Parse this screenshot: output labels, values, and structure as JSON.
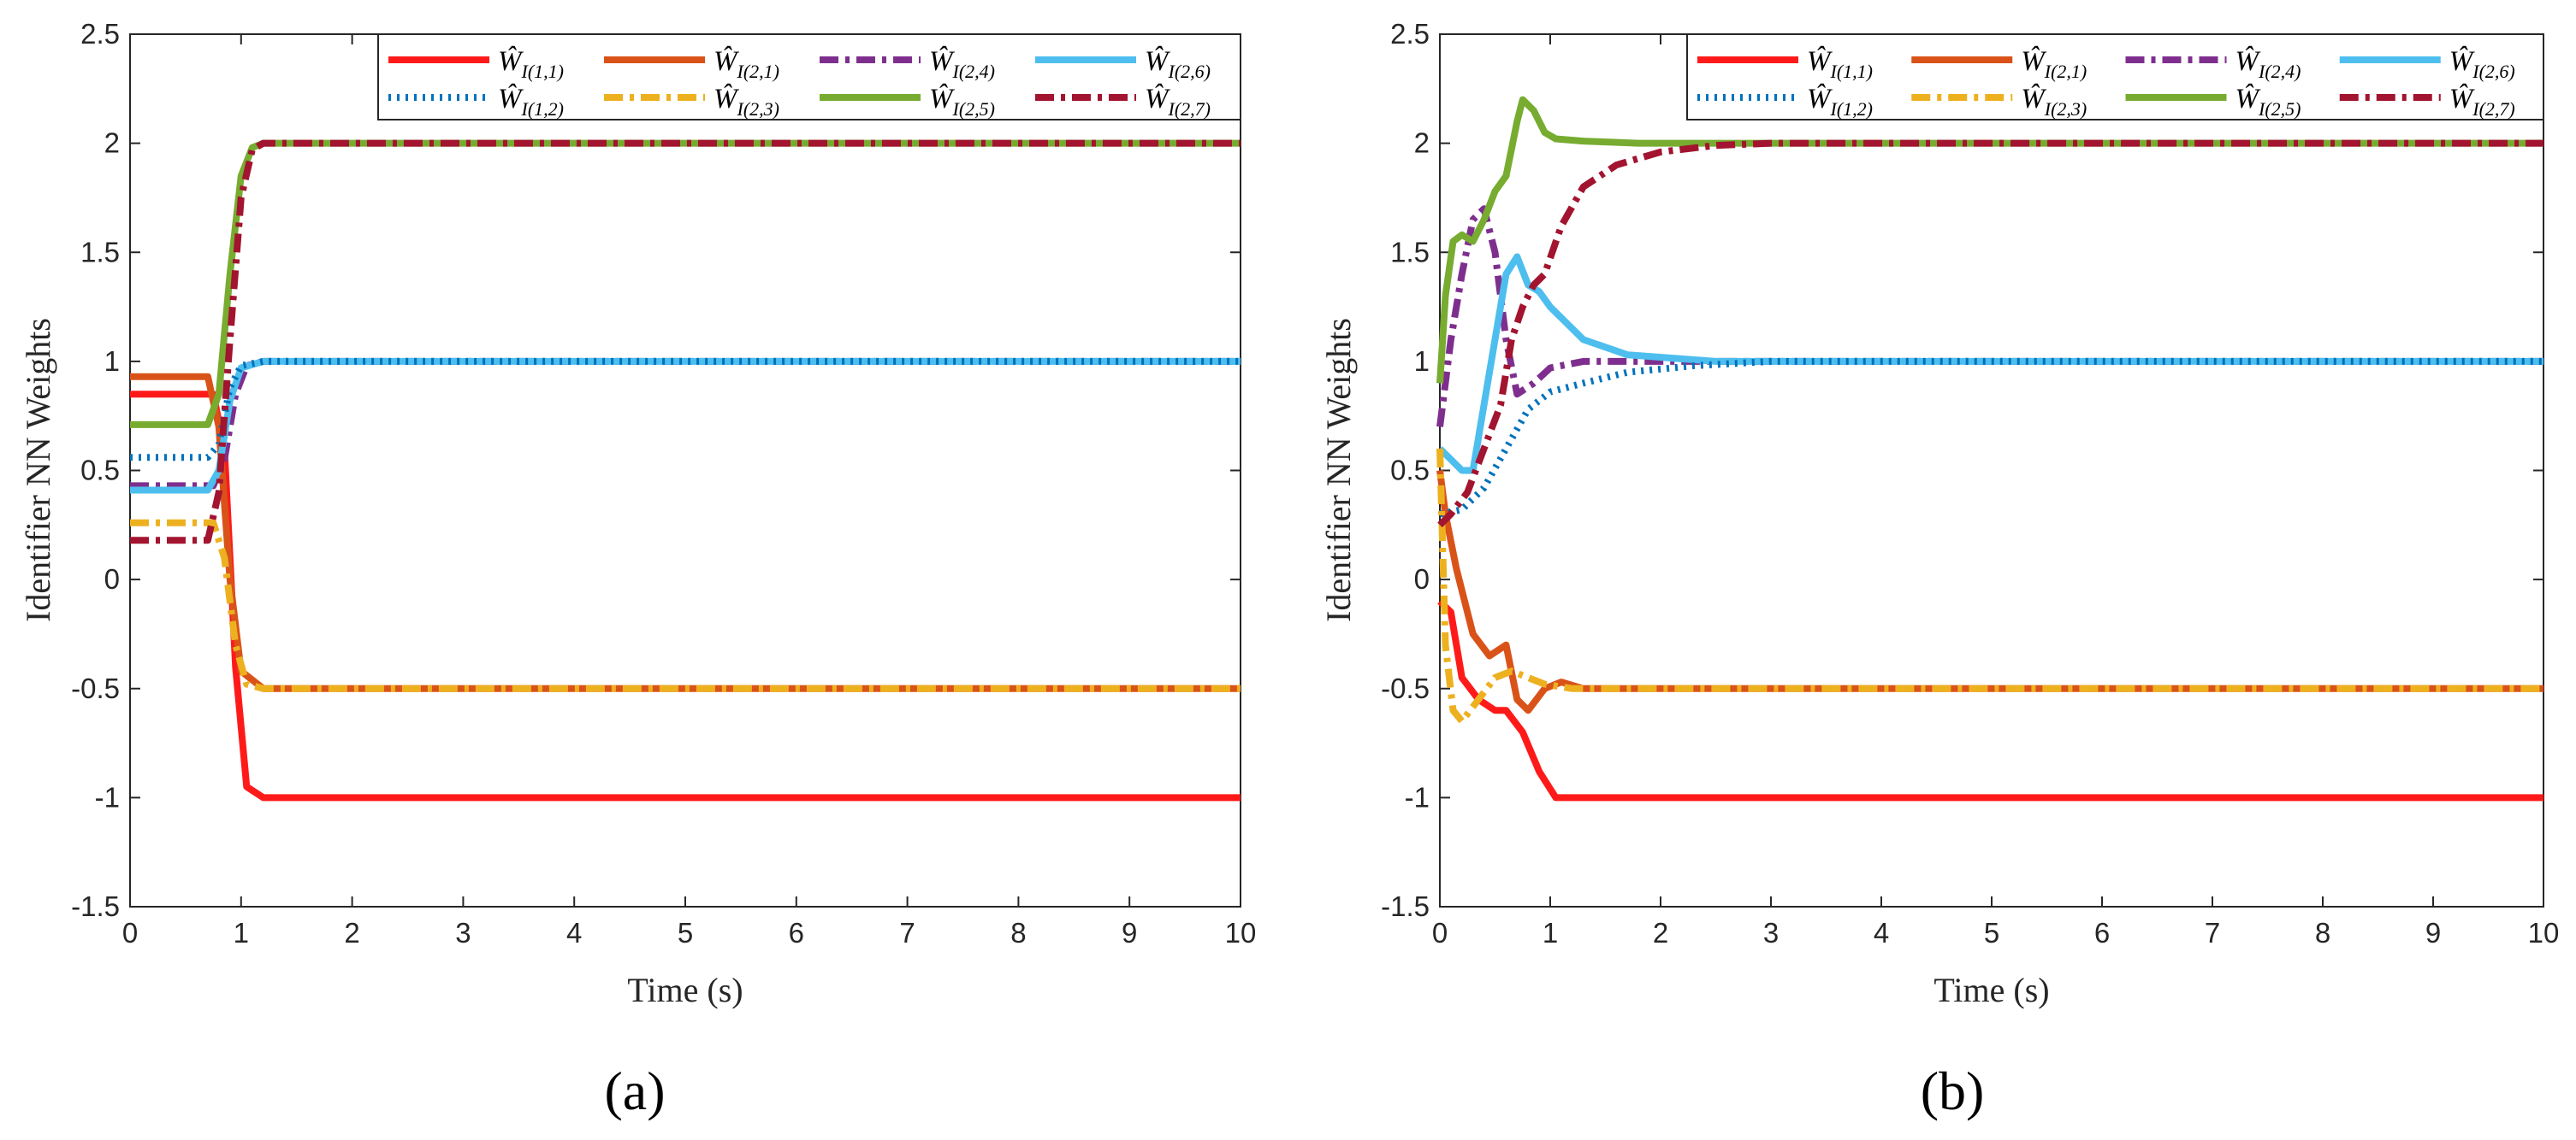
{
  "colors": {
    "w11": "#ff1a1a",
    "w21": "#d95319",
    "w24": "#7e2f8e",
    "w26": "#4dbeee",
    "w12": "#0072bd",
    "w23": "#edb120",
    "w25": "#77ac30",
    "w27": "#a2142f",
    "axis": "#262626"
  },
  "chart_data": [
    {
      "type": "line",
      "caption": "(a)",
      "xlabel": "Time (s)",
      "ylabel": "Identifier NN Weights",
      "xlim": [
        0,
        10
      ],
      "ylim": [
        -1.5,
        2.5
      ],
      "xticks": [
        "0",
        "1",
        "2",
        "3",
        "4",
        "5",
        "6",
        "7",
        "8",
        "9",
        "10"
      ],
      "yticks": [
        "-1.5",
        "-1",
        "-0.5",
        "0",
        "0.5",
        "1",
        "1.5",
        "2",
        "2.5"
      ],
      "legend_position": "top-right",
      "series": [
        {
          "key": "w11",
          "name": "Ŵ",
          "sub": "I(1,1)",
          "style": "solid",
          "x": [
            0,
            0.75,
            0.85,
            0.95,
            1.05,
            1.2,
            10
          ],
          "y": [
            0.85,
            0.85,
            0.6,
            -0.4,
            -0.95,
            -1.0,
            -1.0
          ]
        },
        {
          "key": "w21",
          "name": "Ŵ",
          "sub": "I(2,1)",
          "style": "solid",
          "x": [
            0,
            0.7,
            0.8,
            0.9,
            1.0,
            1.2,
            10
          ],
          "y": [
            0.93,
            0.93,
            0.7,
            0.0,
            -0.42,
            -0.5,
            -0.5
          ]
        },
        {
          "key": "w24",
          "name": "Ŵ",
          "sub": "I(2,4)",
          "style": "dashdot",
          "x": [
            0,
            0.75,
            0.85,
            0.95,
            1.05,
            1.2,
            10
          ],
          "y": [
            0.43,
            0.43,
            0.55,
            0.85,
            0.98,
            1.0,
            1.0
          ]
        },
        {
          "key": "w26",
          "name": "Ŵ",
          "sub": "I(2,6)",
          "style": "solid",
          "x": [
            0,
            0.7,
            0.8,
            0.9,
            1.0,
            1.2,
            10
          ],
          "y": [
            0.41,
            0.41,
            0.5,
            0.82,
            0.97,
            1.0,
            1.0
          ]
        },
        {
          "key": "w12",
          "name": "Ŵ",
          "sub": "I(1,2)",
          "style": "dotted",
          "x": [
            0,
            0.7,
            0.8,
            0.9,
            1.0,
            1.2,
            10
          ],
          "y": [
            0.56,
            0.56,
            0.62,
            0.88,
            0.98,
            1.0,
            1.0
          ]
        },
        {
          "key": "w23",
          "name": "Ŵ",
          "sub": "I(2,3)",
          "style": "dashdot",
          "x": [
            0,
            0.75,
            0.85,
            0.95,
            1.05,
            1.2,
            10
          ],
          "y": [
            0.26,
            0.26,
            0.1,
            -0.3,
            -0.48,
            -0.5,
            -0.5
          ]
        },
        {
          "key": "w25",
          "name": "Ŵ",
          "sub": "I(2,5)",
          "style": "solid",
          "x": [
            0,
            0.7,
            0.8,
            0.9,
            1.0,
            1.1,
            1.2,
            10
          ],
          "y": [
            0.71,
            0.71,
            0.85,
            1.4,
            1.85,
            1.98,
            2.0,
            2.0
          ]
        },
        {
          "key": "w27",
          "name": "Ŵ",
          "sub": "I(2,7)",
          "style": "dashdot",
          "x": [
            0,
            0.7,
            0.8,
            0.9,
            1.0,
            1.1,
            1.2,
            10
          ],
          "y": [
            0.18,
            0.18,
            0.4,
            1.1,
            1.75,
            1.97,
            2.0,
            2.0
          ]
        }
      ]
    },
    {
      "type": "line",
      "caption": "(b)",
      "xlabel": "Time (s)",
      "ylabel": "Identifier NN Weights",
      "xlim": [
        0,
        10
      ],
      "ylim": [
        -1.5,
        2.5
      ],
      "xticks": [
        "0",
        "1",
        "2",
        "3",
        "4",
        "5",
        "6",
        "7",
        "8",
        "9",
        "10"
      ],
      "yticks": [
        "-1.5",
        "-1",
        "-0.5",
        "0",
        "0.5",
        "1",
        "1.5",
        "2",
        "2.5"
      ],
      "legend_position": "top-right",
      "series": [
        {
          "key": "w11",
          "name": "Ŵ",
          "sub": "I(1,1)",
          "style": "solid",
          "x": [
            0,
            0.1,
            0.2,
            0.35,
            0.5,
            0.6,
            0.75,
            0.9,
            1.05,
            1.2,
            10
          ],
          "y": [
            -0.1,
            -0.15,
            -0.45,
            -0.55,
            -0.6,
            -0.6,
            -0.7,
            -0.88,
            -1.0,
            -1.0,
            -1.0
          ]
        },
        {
          "key": "w21",
          "name": "Ŵ",
          "sub": "I(2,1)",
          "style": "solid",
          "x": [
            0,
            0.05,
            0.15,
            0.3,
            0.45,
            0.6,
            0.7,
            0.8,
            0.95,
            1.1,
            1.3,
            10
          ],
          "y": [
            0.5,
            0.3,
            0.05,
            -0.25,
            -0.35,
            -0.3,
            -0.55,
            -0.6,
            -0.5,
            -0.47,
            -0.5,
            -0.5
          ]
        },
        {
          "key": "w24",
          "name": "Ŵ",
          "sub": "I(2,4)",
          "style": "dashdot",
          "x": [
            0,
            0.1,
            0.2,
            0.3,
            0.4,
            0.5,
            0.6,
            0.7,
            0.85,
            1.0,
            1.3,
            2.0,
            10
          ],
          "y": [
            0.7,
            1.1,
            1.4,
            1.65,
            1.7,
            1.5,
            1.1,
            0.85,
            0.9,
            0.97,
            1.0,
            1.0,
            1.0
          ]
        },
        {
          "key": "w26",
          "name": "Ŵ",
          "sub": "I(2,6)",
          "style": "solid",
          "x": [
            0,
            0.1,
            0.2,
            0.3,
            0.45,
            0.6,
            0.7,
            0.8,
            0.9,
            1.0,
            1.3,
            1.7,
            2.5,
            10
          ],
          "y": [
            0.6,
            0.55,
            0.5,
            0.5,
            0.95,
            1.4,
            1.48,
            1.35,
            1.32,
            1.25,
            1.1,
            1.03,
            1.0,
            1.0
          ]
        },
        {
          "key": "w12",
          "name": "Ŵ",
          "sub": "I(1,2)",
          "style": "dotted",
          "x": [
            0,
            0.2,
            0.4,
            0.6,
            0.8,
            1.0,
            1.3,
            1.7,
            2.3,
            3.0,
            10
          ],
          "y": [
            0.3,
            0.32,
            0.42,
            0.6,
            0.78,
            0.86,
            0.9,
            0.95,
            0.98,
            1.0,
            1.0
          ]
        },
        {
          "key": "w23",
          "name": "Ŵ",
          "sub": "I(2,3)",
          "style": "dashdot",
          "x": [
            0,
            0.05,
            0.12,
            0.2,
            0.35,
            0.5,
            0.65,
            0.8,
            0.95,
            1.2,
            10
          ],
          "y": [
            0.6,
            -0.3,
            -0.6,
            -0.65,
            -0.55,
            -0.45,
            -0.42,
            -0.45,
            -0.48,
            -0.5,
            -0.5
          ]
        },
        {
          "key": "w25",
          "name": "Ŵ",
          "sub": "I(2,5)",
          "style": "solid",
          "x": [
            0,
            0.05,
            0.12,
            0.2,
            0.3,
            0.4,
            0.5,
            0.6,
            0.7,
            0.75,
            0.85,
            0.95,
            1.05,
            1.3,
            1.8,
            10
          ],
          "y": [
            0.9,
            1.3,
            1.55,
            1.58,
            1.55,
            1.65,
            1.78,
            1.85,
            2.1,
            2.2,
            2.15,
            2.05,
            2.02,
            2.01,
            2.0,
            2.0
          ]
        },
        {
          "key": "w27",
          "name": "Ŵ",
          "sub": "I(2,7)",
          "style": "dashdot",
          "x": [
            0,
            0.1,
            0.25,
            0.4,
            0.55,
            0.65,
            0.75,
            0.85,
            0.95,
            1.1,
            1.3,
            1.6,
            2.0,
            2.5,
            3.0,
            10
          ],
          "y": [
            0.25,
            0.3,
            0.4,
            0.6,
            0.8,
            1.1,
            1.25,
            1.35,
            1.4,
            1.62,
            1.8,
            1.9,
            1.96,
            1.99,
            2.0,
            2.0
          ]
        }
      ]
    }
  ]
}
